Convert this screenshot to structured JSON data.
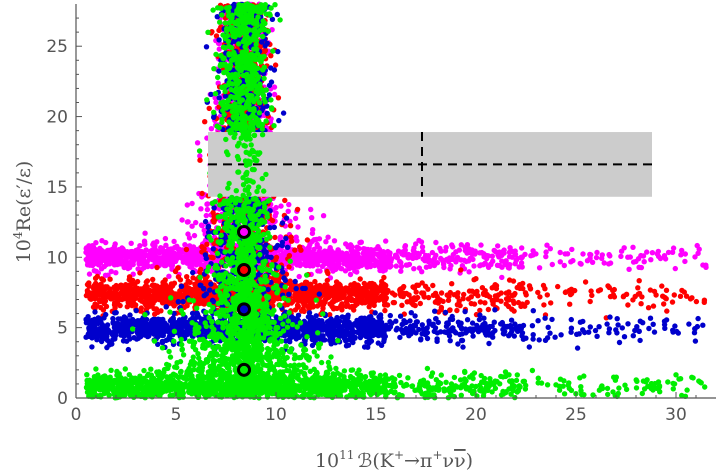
{
  "chart_data": {
    "type": "scatter",
    "xlabel_html": "10^11 B(K+ → π+ ν ν̄)",
    "xlabel": {
      "prefix": "10",
      "exp": "11",
      "main": "ℬ(K",
      "sup1": "+",
      "arrow": "→π",
      "sup2": "+",
      "rest": "ν",
      "bar": "ν",
      "close": ")"
    },
    "ylabel": {
      "prefix": "10",
      "exp": "4",
      "main": "Re(ε′/ε)"
    },
    "xlim": [
      0,
      32
    ],
    "ylim": [
      0,
      28
    ],
    "xticks": [
      "0",
      "5",
      "10",
      "15",
      "20",
      "25",
      "30"
    ],
    "xtick_values": [
      0,
      5,
      10,
      15,
      20,
      25,
      30
    ],
    "yticks": [
      "0",
      "5",
      "10",
      "15",
      "20",
      "25"
    ],
    "ytick_values": [
      0,
      5,
      10,
      15,
      20,
      25
    ],
    "grid": false,
    "experimental_band": {
      "x_range": [
        6.6,
        28.8
      ],
      "y_range": [
        14.3,
        18.9
      ],
      "y_central": 16.6,
      "x_central": 17.3,
      "color": "#cccccc"
    },
    "series": [
      {
        "color": "#ff00ff",
        "band_center": 10.0,
        "band_halfwidth": 0.55,
        "sm_point": [
          8.4,
          11.8
        ]
      },
      {
        "color": "#ff0000",
        "band_center": 7.3,
        "band_halfwidth": 0.6,
        "sm_point": [
          8.4,
          9.1
        ]
      },
      {
        "color": "#0000cc",
        "band_center": 4.9,
        "band_halfwidth": 0.55,
        "sm_point": [
          8.4,
          6.3
        ]
      },
      {
        "color": "#00ee00",
        "band_center": 0.8,
        "band_halfwidth": 0.6,
        "sm_point": [
          8.4,
          2.0
        ]
      }
    ],
    "vertical_column": {
      "x_center": 8.4,
      "x_halfwidth": 1.0
    }
  }
}
